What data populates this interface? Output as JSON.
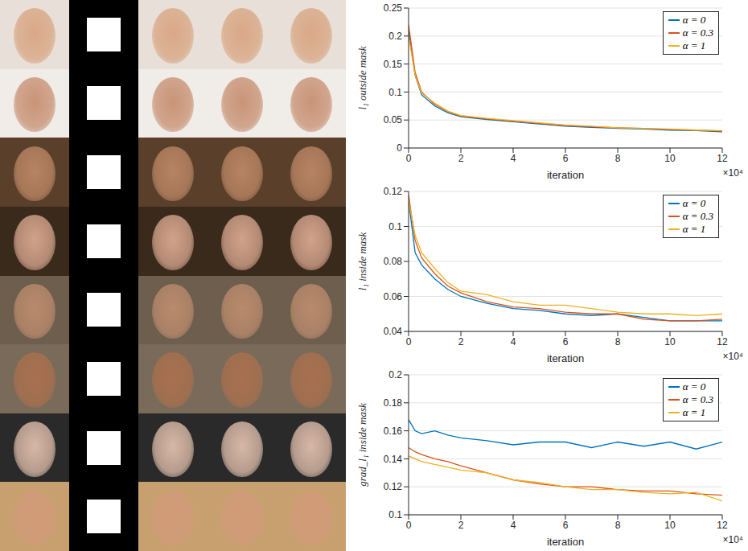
{
  "chart_data": [
    {
      "type": "line",
      "xlabel": "iteration",
      "ylabel": "l₁ outside mask",
      "annotations": [
        "×10⁴"
      ],
      "x": [
        0,
        0.25,
        0.5,
        1,
        1.5,
        2,
        3,
        4,
        5,
        6,
        7,
        8,
        9,
        10,
        11,
        12
      ],
      "xlim": [
        0,
        12
      ],
      "xticks": [
        0,
        2,
        4,
        6,
        8,
        10,
        12
      ],
      "ylim": [
        0,
        0.25
      ],
      "yticks": [
        0,
        0.05,
        0.1,
        0.15,
        0.2,
        0.25
      ],
      "grid": true,
      "legend": "upper right",
      "series": [
        {
          "name": "α = 0",
          "color": "#0072bd",
          "values": [
            0.21,
            0.13,
            0.095,
            0.075,
            0.063,
            0.056,
            0.051,
            0.047,
            0.043,
            0.039,
            0.037,
            0.035,
            0.034,
            0.032,
            0.031,
            0.029
          ]
        },
        {
          "name": "α = 0.3",
          "color": "#d95319",
          "values": [
            0.22,
            0.135,
            0.1,
            0.078,
            0.065,
            0.057,
            0.052,
            0.048,
            0.044,
            0.04,
            0.038,
            0.036,
            0.035,
            0.033,
            0.032,
            0.03
          ]
        },
        {
          "name": "α = 1",
          "color": "#edb120",
          "values": [
            0.2,
            0.13,
            0.098,
            0.08,
            0.066,
            0.058,
            0.053,
            0.049,
            0.045,
            0.041,
            0.039,
            0.036,
            0.035,
            0.034,
            0.032,
            0.031
          ]
        }
      ]
    },
    {
      "type": "line",
      "xlabel": "iteration",
      "ylabel": "l₁ inside mask",
      "annotations": [
        "×10⁴"
      ],
      "x": [
        0,
        0.25,
        0.5,
        1,
        1.5,
        2,
        3,
        4,
        5,
        6,
        7,
        8,
        9,
        10,
        11,
        12
      ],
      "xlim": [
        0,
        12
      ],
      "xticks": [
        0,
        2,
        4,
        6,
        8,
        10,
        12
      ],
      "ylim": [
        0.04,
        0.12
      ],
      "yticks": [
        0.04,
        0.06,
        0.08,
        0.1,
        0.12
      ],
      "grid": true,
      "legend": "upper right",
      "series": [
        {
          "name": "α = 0",
          "color": "#0072bd",
          "values": [
            0.115,
            0.085,
            0.078,
            0.07,
            0.064,
            0.06,
            0.056,
            0.053,
            0.052,
            0.05,
            0.049,
            0.05,
            0.048,
            0.046,
            0.046,
            0.046
          ]
        },
        {
          "name": "α = 0.3",
          "color": "#d95319",
          "values": [
            0.118,
            0.092,
            0.082,
            0.073,
            0.066,
            0.062,
            0.057,
            0.054,
            0.053,
            0.051,
            0.05,
            0.05,
            0.047,
            0.046,
            0.046,
            0.047
          ]
        },
        {
          "name": "α = 1",
          "color": "#edb120",
          "values": [
            0.115,
            0.095,
            0.085,
            0.076,
            0.068,
            0.063,
            0.061,
            0.057,
            0.055,
            0.055,
            0.053,
            0.051,
            0.05,
            0.05,
            0.049,
            0.05
          ]
        }
      ]
    },
    {
      "type": "line",
      "xlabel": "iteration",
      "ylabel": "grad_l₁ inside mask",
      "annotations": [
        "×10⁴"
      ],
      "x": [
        0,
        0.25,
        0.5,
        1,
        1.5,
        2,
        3,
        4,
        5,
        6,
        7,
        8,
        9,
        10,
        11,
        12
      ],
      "xlim": [
        0,
        12
      ],
      "xticks": [
        0,
        2,
        4,
        6,
        8,
        10,
        12
      ],
      "ylim": [
        0.1,
        0.2
      ],
      "yticks": [
        0.1,
        0.12,
        0.14,
        0.16,
        0.18,
        0.2
      ],
      "grid": true,
      "legend": "upper right",
      "series": [
        {
          "name": "α = 0",
          "color": "#0072bd",
          "values": [
            0.168,
            0.16,
            0.158,
            0.16,
            0.157,
            0.155,
            0.153,
            0.15,
            0.152,
            0.152,
            0.148,
            0.152,
            0.149,
            0.152,
            0.147,
            0.152
          ]
        },
        {
          "name": "α = 0.3",
          "color": "#d95319",
          "values": [
            0.148,
            0.145,
            0.143,
            0.14,
            0.138,
            0.135,
            0.13,
            0.125,
            0.122,
            0.12,
            0.12,
            0.118,
            0.117,
            0.117,
            0.115,
            0.114
          ]
        },
        {
          "name": "α = 1",
          "color": "#edb120",
          "values": [
            0.142,
            0.14,
            0.138,
            0.136,
            0.134,
            0.132,
            0.13,
            0.125,
            0.123,
            0.12,
            0.118,
            0.118,
            0.116,
            0.115,
            0.116,
            0.11
          ]
        }
      ]
    }
  ]
}
